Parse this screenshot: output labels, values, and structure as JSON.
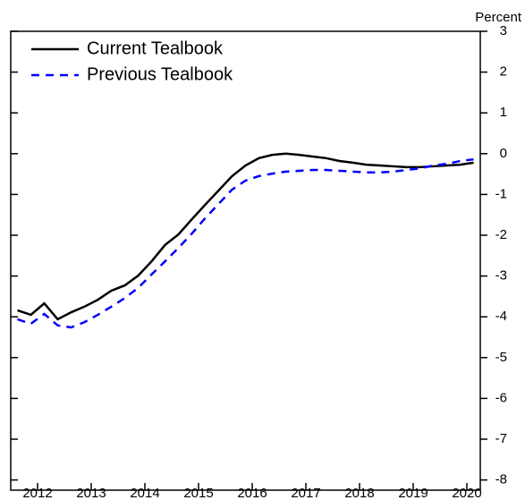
{
  "chart_data": {
    "type": "line",
    "y_label": "Percent",
    "x": [
      2012.125,
      2012.375,
      2012.625,
      2012.875,
      2013.125,
      2013.375,
      2013.625,
      2013.875,
      2014.125,
      2014.375,
      2014.625,
      2014.875,
      2015.125,
      2015.375,
      2015.625,
      2015.875,
      2016.125,
      2016.375,
      2016.625,
      2016.875,
      2017.125,
      2017.375,
      2017.625,
      2017.875,
      2018.125,
      2018.375,
      2018.625,
      2018.875,
      2019.125,
      2019.375,
      2019.625,
      2019.875,
      2020.125,
      2020.375,
      2020.625
    ],
    "series": [
      {
        "name": "Current Tealbook",
        "color": "#000000",
        "dash": false,
        "values": [
          -3.84,
          -3.95,
          -3.67,
          -4.06,
          -3.89,
          -3.75,
          -3.58,
          -3.36,
          -3.23,
          -2.99,
          -2.64,
          -2.24,
          -1.98,
          -1.61,
          -1.25,
          -0.9,
          -0.55,
          -0.29,
          -0.11,
          -0.03,
          0,
          -0.03,
          -0.07,
          -0.11,
          -0.18,
          -0.22,
          -0.27,
          -0.29,
          -0.31,
          -0.33,
          -0.33,
          -0.31,
          -0.29,
          -0.27,
          -0.22
        ]
      },
      {
        "name": "Previous Tealbook",
        "color": "#0000ff",
        "dash": true,
        "values": [
          -4.06,
          -4.17,
          -3.93,
          -4.21,
          -4.26,
          -4.13,
          -3.95,
          -3.75,
          -3.54,
          -3.29,
          -2.96,
          -2.64,
          -2.31,
          -1.96,
          -1.58,
          -1.23,
          -0.88,
          -0.66,
          -0.55,
          -0.49,
          -0.44,
          -0.42,
          -0.4,
          -0.4,
          -0.42,
          -0.44,
          -0.46,
          -0.46,
          -0.44,
          -0.4,
          -0.36,
          -0.29,
          -0.25,
          -0.18,
          -0.14
        ]
      }
    ],
    "xlim": [
      2012,
      2020.75
    ],
    "xticks": [
      {
        "value": 2012.5,
        "label": "2012"
      },
      {
        "value": 2013.5,
        "label": "2013"
      },
      {
        "value": 2014.5,
        "label": "2014"
      },
      {
        "value": 2015.5,
        "label": "2015"
      },
      {
        "value": 2016.5,
        "label": "2016"
      },
      {
        "value": 2017.5,
        "label": "2017"
      },
      {
        "value": 2018.5,
        "label": "2018"
      },
      {
        "value": 2019.5,
        "label": "2019"
      },
      {
        "value": 2020.5,
        "label": "2020"
      }
    ],
    "ylim": [
      -8.25,
      3
    ],
    "yticks": [
      3,
      2,
      1,
      0,
      -1,
      -2,
      -3,
      -4,
      -5,
      -6,
      -7,
      -8
    ],
    "legend": "upper left"
  }
}
